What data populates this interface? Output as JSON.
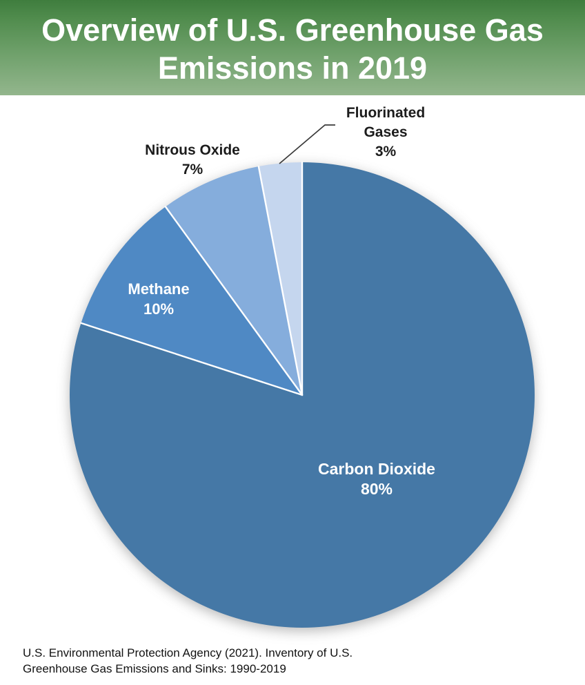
{
  "header": {
    "title_line1": "Overview of U.S. Greenhouse Gas",
    "title_line2": "Emissions in 2019",
    "background_top_color": "#3f7d3e",
    "background_bottom_color": "#93b68d",
    "text_color": "#ffffff"
  },
  "chart_data": {
    "type": "pie",
    "title": "Overview of U.S. Greenhouse Gas Emissions in 2019",
    "categories": [
      "Carbon Dioxide",
      "Methane",
      "Nitrous Oxide",
      "Fluorinated Gases"
    ],
    "values": [
      80,
      10,
      7,
      3
    ],
    "start_position": "12 o'clock",
    "direction": "clockwise",
    "legend": "none",
    "separator_color": "#ffffff",
    "leader_line_color": "#3a3a3a",
    "slices": [
      {
        "label": "Carbon Dioxide",
        "value": 80,
        "pct_text": "80%",
        "color": "#4578A6",
        "label_color": "#ffffff",
        "label_position": "inside"
      },
      {
        "label": "Methane",
        "value": 10,
        "pct_text": "10%",
        "color": "#4F89C4",
        "label_color": "#ffffff",
        "label_position": "inside"
      },
      {
        "label": "Nitrous Oxide",
        "value": 7,
        "pct_text": "7%",
        "color": "#85ADDC",
        "label_color": "#1c1c1c",
        "label_position": "outside"
      },
      {
        "label": "Fluorinated Gases",
        "value": 3,
        "pct_text": "3%",
        "color": "#C5D6EE",
        "label_color": "#1c1c1c",
        "label_position": "outside-with-leader-line",
        "label_lines": [
          "Fluorinated",
          "Gases"
        ]
      }
    ]
  },
  "footer": {
    "source_line1": "U.S. Environmental Protection Agency (2021). Inventory of U.S.",
    "source_line2": "Greenhouse Gas Emissions and Sinks: 1990-2019"
  }
}
